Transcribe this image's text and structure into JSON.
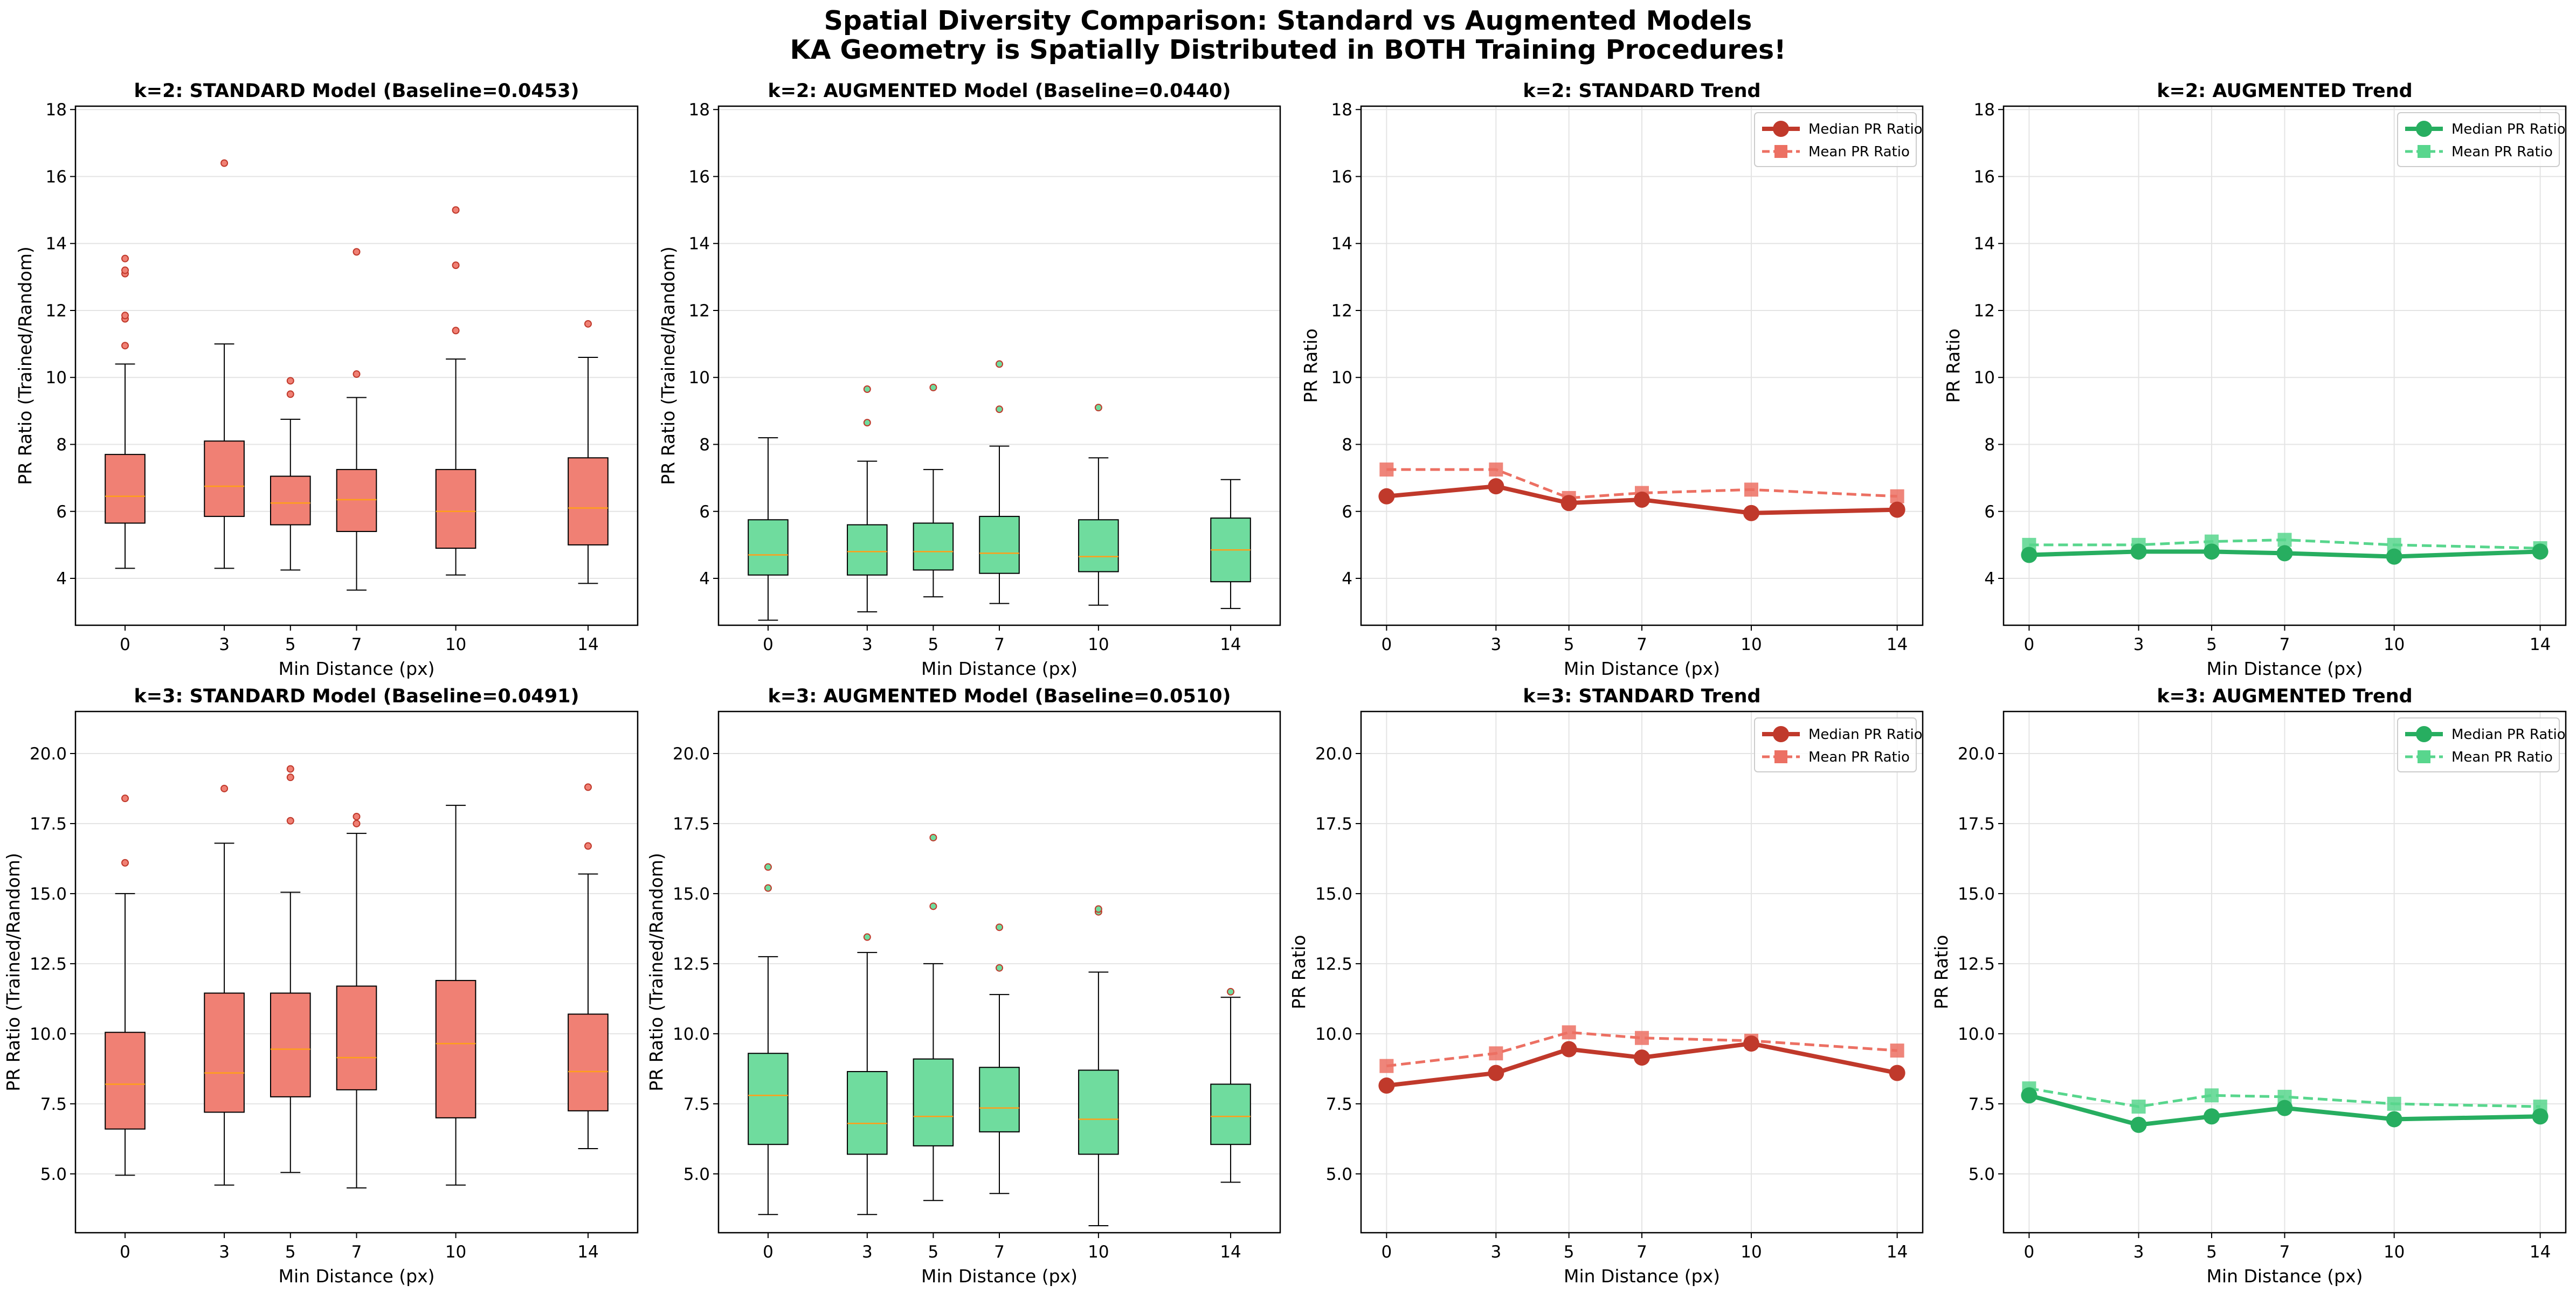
{
  "figure": {
    "title_line1": "Spatial Diversity Comparison: Standard vs Augmented Models",
    "title_line2": "KA Geometry is Spatially Distributed in BOTH Training Procedures!"
  },
  "colors": {
    "standard_box": "#f08074",
    "augmented_box": "#6fdc9e",
    "standard_line": "#c0392b",
    "standard_mean": "#ec7063",
    "augmented_line": "#27ae60",
    "augmented_mean": "#58d68d",
    "median_tick": "#ff9f1a",
    "outlier": "#c0392b"
  },
  "chart_data": [
    {
      "type": "box",
      "title": "k=2: STANDARD Model (Baseline=0.0453)",
      "xlabel": "Min Distance (px)",
      "ylabel": "PR Ratio (Trained/Random)",
      "ylim": [
        2.6,
        18.1
      ],
      "yticks": [
        4,
        6,
        8,
        10,
        12,
        14,
        16,
        18
      ],
      "xlim": [
        -1.5,
        15.5
      ],
      "xticks": [
        0,
        3,
        5,
        7,
        10,
        14
      ],
      "color": "standard",
      "boxes": [
        {
          "x": 0,
          "whislo": 4.3,
          "q1": 5.65,
          "med": 6.45,
          "q3": 7.7,
          "whishi": 10.4,
          "fliers": [
            10.95,
            11.75,
            11.85,
            13.1,
            13.2,
            13.55
          ]
        },
        {
          "x": 3,
          "whislo": 4.3,
          "q1": 5.85,
          "med": 6.75,
          "q3": 8.1,
          "whishi": 11.0,
          "fliers": [
            16.4
          ]
        },
        {
          "x": 5,
          "whislo": 4.25,
          "q1": 5.6,
          "med": 6.25,
          "q3": 7.05,
          "whishi": 8.75,
          "fliers": [
            9.5,
            9.9
          ]
        },
        {
          "x": 7,
          "whislo": 3.65,
          "q1": 5.4,
          "med": 6.35,
          "q3": 7.25,
          "whishi": 9.4,
          "fliers": [
            10.1,
            13.75
          ]
        },
        {
          "x": 10,
          "whislo": 4.1,
          "q1": 4.9,
          "med": 6.0,
          "q3": 7.25,
          "whishi": 10.55,
          "fliers": [
            11.4,
            13.35,
            15.0
          ]
        },
        {
          "x": 14,
          "whislo": 3.85,
          "q1": 5.0,
          "med": 6.1,
          "q3": 7.6,
          "whishi": 10.6,
          "fliers": [
            11.6
          ]
        }
      ]
    },
    {
      "type": "box",
      "title": "k=2: AUGMENTED Model (Baseline=0.0440)",
      "xlabel": "Min Distance (px)",
      "ylabel": "PR Ratio (Trained/Random)",
      "ylim": [
        2.6,
        18.1
      ],
      "yticks": [
        4,
        6,
        8,
        10,
        12,
        14,
        16,
        18
      ],
      "xlim": [
        -1.5,
        15.5
      ],
      "xticks": [
        0,
        3,
        5,
        7,
        10,
        14
      ],
      "color": "augmented",
      "boxes": [
        {
          "x": 0,
          "whislo": 2.75,
          "q1": 4.1,
          "med": 4.7,
          "q3": 5.75,
          "whishi": 8.2,
          "fliers": []
        },
        {
          "x": 3,
          "whislo": 3.0,
          "q1": 4.1,
          "med": 4.8,
          "q3": 5.6,
          "whishi": 7.5,
          "fliers": [
            8.65,
            9.65
          ]
        },
        {
          "x": 5,
          "whislo": 3.45,
          "q1": 4.25,
          "med": 4.8,
          "q3": 5.65,
          "whishi": 7.25,
          "fliers": [
            9.7
          ]
        },
        {
          "x": 7,
          "whislo": 3.25,
          "q1": 4.15,
          "med": 4.75,
          "q3": 5.85,
          "whishi": 7.95,
          "fliers": [
            9.05,
            10.4
          ]
        },
        {
          "x": 10,
          "whislo": 3.2,
          "q1": 4.2,
          "med": 4.65,
          "q3": 5.75,
          "whishi": 7.6,
          "fliers": [
            9.1
          ]
        },
        {
          "x": 14,
          "whislo": 3.1,
          "q1": 3.9,
          "med": 4.85,
          "q3": 5.8,
          "whishi": 6.95,
          "fliers": []
        }
      ]
    },
    {
      "type": "line",
      "title": "k=2: STANDARD Trend",
      "xlabel": "Min Distance (px)",
      "ylabel": "PR Ratio",
      "ylim": [
        2.6,
        18.1
      ],
      "yticks": [
        4,
        6,
        8,
        10,
        12,
        14,
        16,
        18
      ],
      "xlim": [
        -0.7,
        14.7
      ],
      "xticks": [
        0,
        3,
        5,
        7,
        10,
        14
      ],
      "color": "standard",
      "x": [
        0,
        3,
        5,
        7,
        10,
        14
      ],
      "series": [
        {
          "name": "Median PR Ratio",
          "values": [
            6.45,
            6.75,
            6.25,
            6.35,
            5.95,
            6.05
          ]
        },
        {
          "name": "Mean PR Ratio",
          "values": [
            7.25,
            7.25,
            6.4,
            6.55,
            6.65,
            6.45
          ]
        }
      ],
      "legend": "top-right"
    },
    {
      "type": "line",
      "title": "k=2: AUGMENTED Trend",
      "xlabel": "Min Distance (px)",
      "ylabel": "PR Ratio",
      "ylim": [
        2.6,
        18.1
      ],
      "yticks": [
        4,
        6,
        8,
        10,
        12,
        14,
        16,
        18
      ],
      "xlim": [
        -0.7,
        14.7
      ],
      "xticks": [
        0,
        3,
        5,
        7,
        10,
        14
      ],
      "color": "augmented",
      "x": [
        0,
        3,
        5,
        7,
        10,
        14
      ],
      "series": [
        {
          "name": "Median PR Ratio",
          "values": [
            4.7,
            4.8,
            4.8,
            4.75,
            4.65,
            4.8
          ]
        },
        {
          "name": "Mean PR Ratio",
          "values": [
            5.0,
            5.0,
            5.1,
            5.15,
            5.0,
            4.9
          ]
        }
      ],
      "legend": "top-right"
    },
    {
      "type": "box",
      "title": "k=3: STANDARD Model (Baseline=0.0491)",
      "xlabel": "Min Distance (px)",
      "ylabel": "PR Ratio (Trained/Random)",
      "ylim": [
        2.9,
        21.5
      ],
      "yticks": [
        5.0,
        7.5,
        10.0,
        12.5,
        15.0,
        17.5,
        20.0
      ],
      "xlim": [
        -1.5,
        15.5
      ],
      "xticks": [
        0,
        3,
        5,
        7,
        10,
        14
      ],
      "color": "standard",
      "boxes": [
        {
          "x": 0,
          "whislo": 4.95,
          "q1": 6.6,
          "med": 8.2,
          "q3": 10.05,
          "whishi": 15.0,
          "fliers": [
            16.1,
            18.4
          ]
        },
        {
          "x": 3,
          "whislo": 4.6,
          "q1": 7.2,
          "med": 8.6,
          "q3": 11.45,
          "whishi": 16.8,
          "fliers": [
            18.75
          ]
        },
        {
          "x": 5,
          "whislo": 5.05,
          "q1": 7.75,
          "med": 9.45,
          "q3": 11.45,
          "whishi": 15.05,
          "fliers": [
            17.6,
            19.15,
            19.45
          ]
        },
        {
          "x": 7,
          "whislo": 4.5,
          "q1": 8.0,
          "med": 9.15,
          "q3": 11.7,
          "whishi": 17.15,
          "fliers": [
            17.5,
            17.75
          ]
        },
        {
          "x": 10,
          "whislo": 4.6,
          "q1": 7.0,
          "med": 9.65,
          "q3": 11.9,
          "whishi": 18.15,
          "fliers": []
        },
        {
          "x": 14,
          "whislo": 5.9,
          "q1": 7.25,
          "med": 8.65,
          "q3": 10.7,
          "whishi": 15.7,
          "fliers": [
            16.7,
            18.8
          ]
        }
      ]
    },
    {
      "type": "box",
      "title": "k=3: AUGMENTED Model (Baseline=0.0510)",
      "xlabel": "Min Distance (px)",
      "ylabel": "PR Ratio (Trained/Random)",
      "ylim": [
        2.9,
        21.5
      ],
      "yticks": [
        5.0,
        7.5,
        10.0,
        12.5,
        15.0,
        17.5,
        20.0
      ],
      "xlim": [
        -1.5,
        15.5
      ],
      "xticks": [
        0,
        3,
        5,
        7,
        10,
        14
      ],
      "color": "augmented",
      "boxes": [
        {
          "x": 0,
          "whislo": 3.55,
          "q1": 6.05,
          "med": 7.8,
          "q3": 9.3,
          "whishi": 12.75,
          "fliers": [
            15.2,
            15.95
          ]
        },
        {
          "x": 3,
          "whislo": 3.55,
          "q1": 5.7,
          "med": 6.8,
          "q3": 8.65,
          "whishi": 12.9,
          "fliers": [
            13.45
          ]
        },
        {
          "x": 5,
          "whislo": 4.05,
          "q1": 6.0,
          "med": 7.05,
          "q3": 9.1,
          "whishi": 12.5,
          "fliers": [
            14.55,
            17.0
          ]
        },
        {
          "x": 7,
          "whislo": 4.3,
          "q1": 6.5,
          "med": 7.35,
          "q3": 8.8,
          "whishi": 11.4,
          "fliers": [
            12.35,
            13.8
          ]
        },
        {
          "x": 10,
          "whislo": 3.15,
          "q1": 5.7,
          "med": 6.95,
          "q3": 8.7,
          "whishi": 12.2,
          "fliers": [
            14.35,
            14.45
          ]
        },
        {
          "x": 14,
          "whislo": 4.7,
          "q1": 6.05,
          "med": 7.05,
          "q3": 8.2,
          "whishi": 11.3,
          "fliers": [
            11.5
          ]
        }
      ]
    },
    {
      "type": "line",
      "title": "k=3: STANDARD Trend",
      "xlabel": "Min Distance (px)",
      "ylabel": "PR Ratio",
      "ylim": [
        2.9,
        21.5
      ],
      "yticks": [
        5.0,
        7.5,
        10.0,
        12.5,
        15.0,
        17.5,
        20.0
      ],
      "xlim": [
        -0.7,
        14.7
      ],
      "xticks": [
        0,
        3,
        5,
        7,
        10,
        14
      ],
      "color": "standard",
      "x": [
        0,
        3,
        5,
        7,
        10,
        14
      ],
      "series": [
        {
          "name": "Median PR Ratio",
          "values": [
            8.15,
            8.6,
            9.45,
            9.15,
            9.65,
            8.6
          ]
        },
        {
          "name": "Mean PR Ratio",
          "values": [
            8.85,
            9.3,
            10.05,
            9.85,
            9.75,
            9.4
          ]
        }
      ],
      "legend": "top-right"
    },
    {
      "type": "line",
      "title": "k=3: AUGMENTED Trend",
      "xlabel": "Min Distance (px)",
      "ylabel": "PR Ratio",
      "ylim": [
        2.9,
        21.5
      ],
      "yticks": [
        5.0,
        7.5,
        10.0,
        12.5,
        15.0,
        17.5,
        20.0
      ],
      "xlim": [
        -0.7,
        14.7
      ],
      "xticks": [
        0,
        3,
        5,
        7,
        10,
        14
      ],
      "color": "augmented",
      "x": [
        0,
        3,
        5,
        7,
        10,
        14
      ],
      "series": [
        {
          "name": "Median PR Ratio",
          "values": [
            7.8,
            6.75,
            7.05,
            7.35,
            6.95,
            7.05
          ]
        },
        {
          "name": "Mean PR Ratio",
          "values": [
            8.05,
            7.4,
            7.8,
            7.75,
            7.5,
            7.4
          ]
        }
      ],
      "legend": "top-right"
    }
  ]
}
